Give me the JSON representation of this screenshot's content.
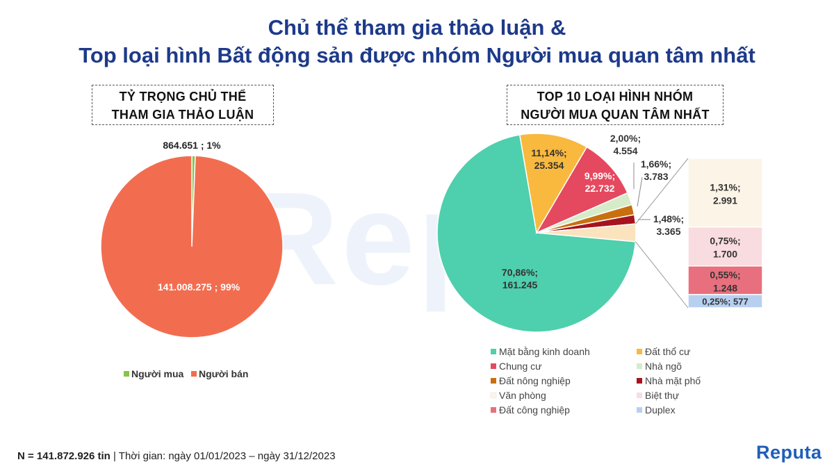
{
  "header": {
    "title_line1": "Chủ thể tham gia thảo luận &",
    "title_line2": "Top loại hình Bất động sản được nhóm Người mua quan tâm nhất"
  },
  "watermark": "Repu",
  "logo": "Reputa",
  "footnote": {
    "bold": "N = 141.872.926 tin",
    "rest": " | Thời gian: ngày 01/01/2023 – ngày 31/12/2023"
  },
  "chart_data": [
    {
      "type": "pie",
      "title_line1": "TỶ TRỌNG CHỦ THỂ",
      "title_line2": "THAM GIA THẢO LUẬN",
      "slices": [
        {
          "name": "Người mua",
          "value": 864651,
          "label": "864.651 ; 1%",
          "color": "#8bc34a"
        },
        {
          "name": "Người bán",
          "value": 141008275,
          "label": "141.008.275 ; 99%",
          "color": "#f26d50"
        }
      ],
      "legend_position": "bottom"
    },
    {
      "type": "pie",
      "subtype": "bar-of-pie",
      "title_line1": "TOP 10 LOẠI HÌNH NHÓM",
      "title_line2": "NGƯỜI MUA QUAN TÂM NHẤT",
      "slices": [
        {
          "name": "Mặt bằng kinh doanh",
          "value": 161245,
          "percent": 70.86,
          "label_pct": "70,86%;",
          "label_val": "161.245",
          "color": "#4ecfad"
        },
        {
          "name": "Đất thổ cư",
          "value": 25354,
          "percent": 11.14,
          "label_pct": "11,14%;",
          "label_val": "25.354",
          "color": "#f9b93e"
        },
        {
          "name": "Chung cư",
          "value": 22732,
          "percent": 9.99,
          "label_pct": "9,99%;",
          "label_val": "22.732",
          "color": "#e5495f"
        },
        {
          "name": "Nhà ngõ",
          "value": 4554,
          "percent": 2.0,
          "label_pct": "2,00%;",
          "label_val": "4.554",
          "color": "#d6ecc9"
        },
        {
          "name": "Đất nông nghiệp",
          "value": 3783,
          "percent": 1.66,
          "label_pct": "1,66%;",
          "label_val": "3.783",
          "color": "#c8700f"
        },
        {
          "name": "Nhà mặt phố",
          "value": 3365,
          "percent": 1.48,
          "label_pct": "1,48%;",
          "label_val": "3.365",
          "color": "#a6131e"
        },
        {
          "name": "Văn phòng",
          "value": 2991,
          "percent": 1.31,
          "label_pct": "1,31%;",
          "label_val": "2.991",
          "color": "#fcf4e6"
        },
        {
          "name": "Biệt thự",
          "value": 1700,
          "percent": 0.75,
          "label_pct": "0,75%;",
          "label_val": "1.700",
          "color": "#f9dcdf"
        },
        {
          "name": "Đất công nghiệp",
          "value": 1248,
          "percent": 0.55,
          "label_pct": "0,55%;",
          "label_val": "1.248",
          "color": "#e8707e"
        },
        {
          "name": "Duplex",
          "value": 577,
          "percent": 0.25,
          "label_pct": "0,25%;",
          "label_val": "577",
          "color": "#b8d0f0"
        }
      ],
      "other_slice_color": "#fbe3bd",
      "legend_position": "bottom"
    }
  ]
}
